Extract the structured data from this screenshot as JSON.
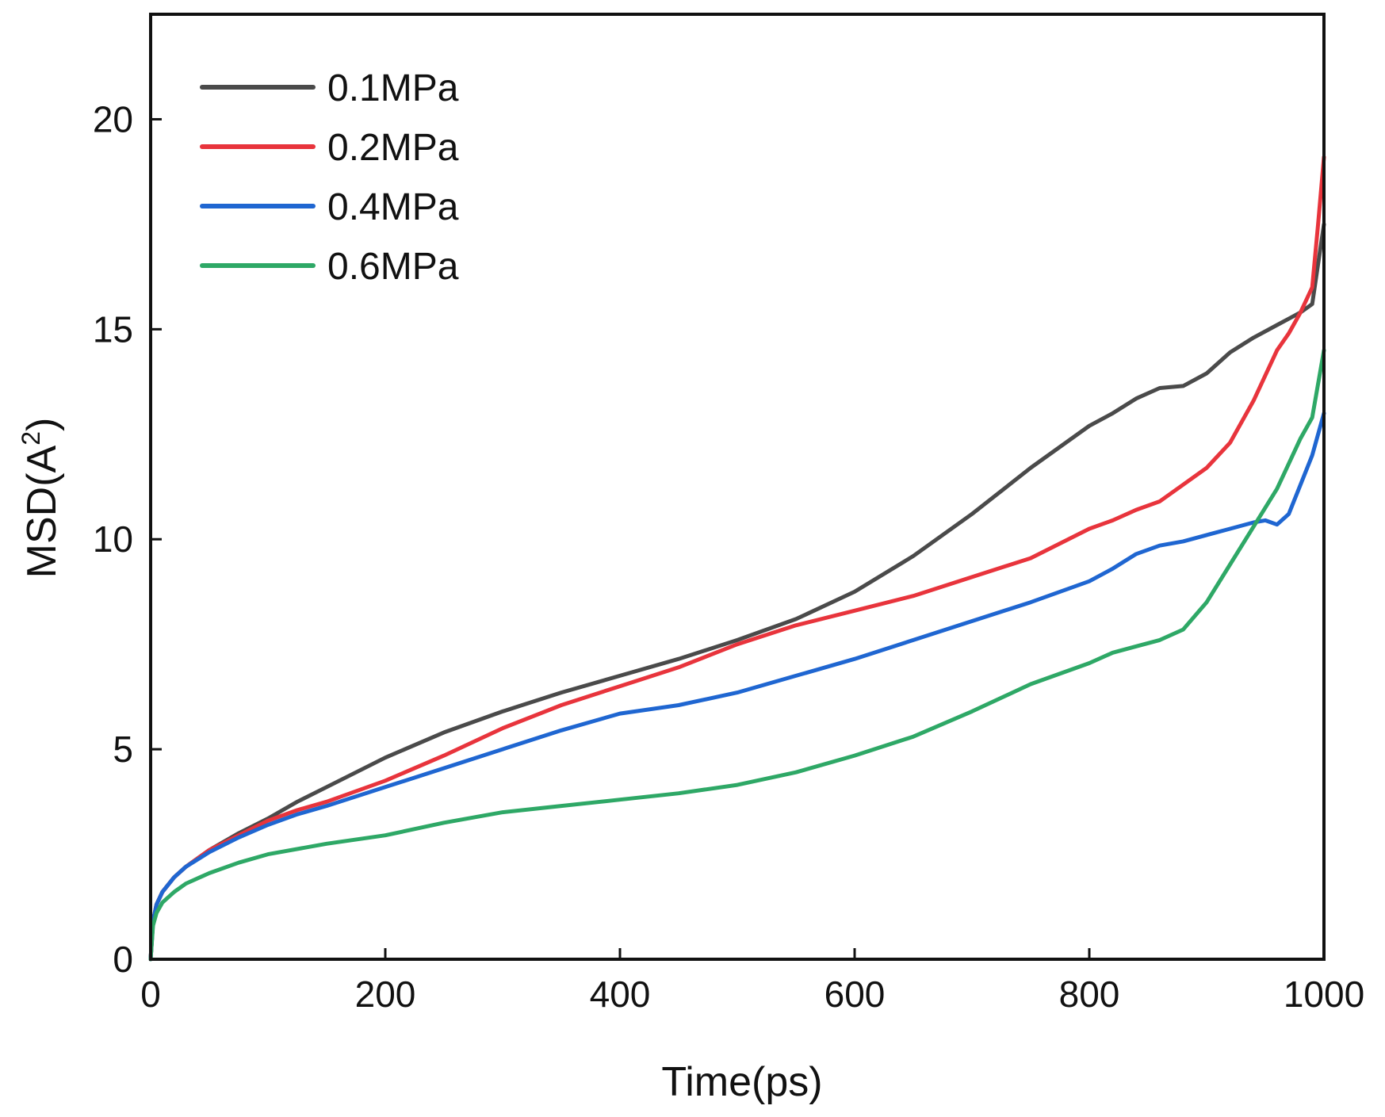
{
  "chart_data": {
    "type": "line",
    "title": "",
    "xlabel": "Time(ps)",
    "ylabel": "MSD(A",
    "ylabel_superscript": "2",
    "ylabel_suffix": ")",
    "xlim": [
      0,
      1000
    ],
    "ylim": [
      0,
      22.5
    ],
    "xticks": [
      0,
      200,
      400,
      600,
      800,
      1000
    ],
    "yticks": [
      0,
      5,
      10,
      15,
      20
    ],
    "grid": false,
    "legend_position": "top-left",
    "series": [
      {
        "name": "0.1MPa",
        "color": "#4a4a4a",
        "x": [
          0,
          2,
          5,
          10,
          20,
          30,
          50,
          75,
          100,
          125,
          150,
          200,
          250,
          300,
          350,
          400,
          450,
          500,
          550,
          600,
          650,
          700,
          750,
          800,
          820,
          840,
          860,
          880,
          900,
          920,
          940,
          960,
          970,
          980,
          990,
          1000
        ],
        "y": [
          0,
          0.9,
          1.3,
          1.6,
          1.95,
          2.2,
          2.6,
          3.0,
          3.35,
          3.75,
          4.1,
          4.8,
          5.4,
          5.9,
          6.35,
          6.75,
          7.15,
          7.6,
          8.1,
          8.75,
          9.6,
          10.6,
          11.7,
          12.7,
          13.0,
          13.35,
          13.6,
          13.65,
          13.95,
          14.45,
          14.8,
          15.1,
          15.25,
          15.4,
          15.6,
          17.5
        ]
      },
      {
        "name": "0.2MPa",
        "color": "#e8343c",
        "x": [
          0,
          2,
          5,
          10,
          20,
          30,
          50,
          75,
          100,
          125,
          150,
          200,
          250,
          300,
          350,
          400,
          450,
          500,
          550,
          600,
          650,
          700,
          750,
          800,
          820,
          840,
          860,
          880,
          900,
          920,
          940,
          960,
          970,
          980,
          990,
          995,
          1000
        ],
        "y": [
          0,
          0.9,
          1.3,
          1.6,
          1.95,
          2.2,
          2.6,
          2.95,
          3.3,
          3.55,
          3.75,
          4.25,
          4.85,
          5.5,
          6.05,
          6.5,
          6.95,
          7.5,
          7.95,
          8.3,
          8.65,
          9.1,
          9.55,
          10.25,
          10.45,
          10.7,
          10.9,
          11.3,
          11.7,
          12.3,
          13.3,
          14.5,
          14.9,
          15.4,
          16.0,
          17.5,
          19.1
        ]
      },
      {
        "name": "0.4MPa",
        "color": "#1f66d1",
        "x": [
          0,
          2,
          5,
          10,
          20,
          30,
          50,
          75,
          100,
          125,
          150,
          200,
          250,
          300,
          350,
          400,
          450,
          500,
          550,
          600,
          650,
          700,
          750,
          800,
          820,
          840,
          860,
          880,
          900,
          920,
          940,
          950,
          960,
          970,
          980,
          990,
          1000
        ],
        "y": [
          0,
          0.9,
          1.3,
          1.6,
          1.95,
          2.2,
          2.55,
          2.9,
          3.2,
          3.45,
          3.65,
          4.1,
          4.55,
          5.0,
          5.45,
          5.85,
          6.05,
          6.35,
          6.75,
          7.15,
          7.6,
          8.05,
          8.5,
          9.0,
          9.3,
          9.65,
          9.85,
          9.95,
          10.1,
          10.25,
          10.4,
          10.45,
          10.35,
          10.6,
          11.3,
          12.0,
          13.0
        ]
      },
      {
        "name": "0.6MPa",
        "color": "#2ea866",
        "x": [
          0,
          2,
          5,
          10,
          20,
          30,
          50,
          75,
          100,
          150,
          200,
          250,
          300,
          350,
          400,
          450,
          500,
          550,
          600,
          650,
          700,
          750,
          800,
          820,
          840,
          860,
          880,
          900,
          920,
          940,
          960,
          970,
          980,
          990,
          1000
        ],
        "y": [
          0,
          0.8,
          1.1,
          1.35,
          1.6,
          1.8,
          2.05,
          2.3,
          2.5,
          2.75,
          2.95,
          3.25,
          3.5,
          3.65,
          3.8,
          3.95,
          4.15,
          4.45,
          4.85,
          5.3,
          5.9,
          6.55,
          7.05,
          7.3,
          7.45,
          7.6,
          7.85,
          8.5,
          9.4,
          10.3,
          11.2,
          11.8,
          12.4,
          12.9,
          14.5
        ]
      }
    ]
  }
}
